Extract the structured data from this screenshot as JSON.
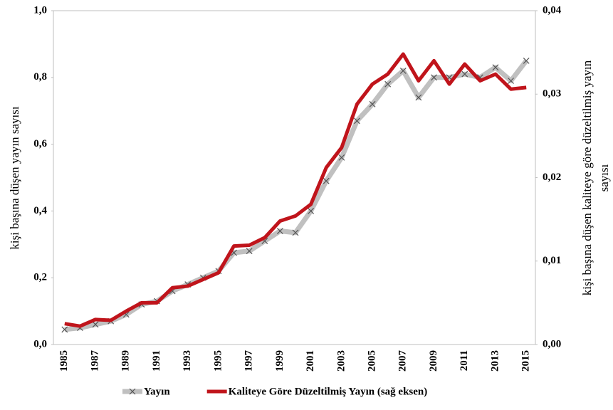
{
  "chart_data": {
    "type": "line",
    "categories": [
      "1985",
      null,
      "1987",
      null,
      "1989",
      null,
      "1991",
      null,
      "1993",
      null,
      "1995",
      null,
      "1997",
      null,
      "1999",
      null,
      "2001",
      null,
      "2003",
      null,
      "2005",
      null,
      "2007",
      null,
      "2009",
      null,
      "2011",
      null,
      "2013",
      null,
      "2015"
    ],
    "ylabel": "kişi başına düşen yayın sayısı",
    "y2label": [
      "kişi başına düşen kaliteye göre düzeltilmiş yayın",
      "sayısı"
    ],
    "ylim": [
      0,
      1
    ],
    "yticks": [
      {
        "value": 0,
        "label": "0,0"
      },
      {
        "value": 0.2,
        "label": "0,2"
      },
      {
        "value": 0.4,
        "label": "0,4"
      },
      {
        "value": 0.6,
        "label": "0,6"
      },
      {
        "value": 0.8,
        "label": "0,8"
      },
      {
        "value": 1,
        "label": "1,0"
      }
    ],
    "y2lim": [
      0,
      0.04
    ],
    "y2ticks": [
      {
        "value": 0,
        "label": "0,00"
      },
      {
        "value": 0.01,
        "label": "0,01"
      },
      {
        "value": 0.02,
        "label": "0,02"
      },
      {
        "value": 0.03,
        "label": "0,03"
      },
      {
        "value": 0.04,
        "label": "0,04"
      }
    ],
    "grid": false,
    "legend": "bottom",
    "series": [
      {
        "name": "Yayın",
        "color": "#c0c0c0",
        "marker": "x",
        "values": [
          0.045,
          0.05,
          0.06,
          0.07,
          0.09,
          0.12,
          0.13,
          0.16,
          0.18,
          0.2,
          0.22,
          0.275,
          0.28,
          0.31,
          0.34,
          0.335,
          0.4,
          0.49,
          0.56,
          0.67,
          0.72,
          0.78,
          0.82,
          0.74,
          0.8,
          0.8,
          0.81,
          0.8,
          0.83,
          0.79,
          0.85
        ]
      },
      {
        "name": "Kaliteye Göre Düzeltilmiş Yayın (sağ eksen)",
        "color": "#c0141b",
        "axis": "y2",
        "values": [
          0.0025,
          0.0022,
          0.003,
          0.0029,
          0.004,
          0.005,
          0.005,
          0.0068,
          0.007,
          0.0078,
          0.0086,
          0.0118,
          0.0119,
          0.0128,
          0.0148,
          0.0154,
          0.0168,
          0.0212,
          0.0236,
          0.0288,
          0.0312,
          0.0324,
          0.0348,
          0.0316,
          0.034,
          0.0312,
          0.0336,
          0.0316,
          0.0324,
          0.0306,
          0.0308
        ]
      }
    ]
  }
}
